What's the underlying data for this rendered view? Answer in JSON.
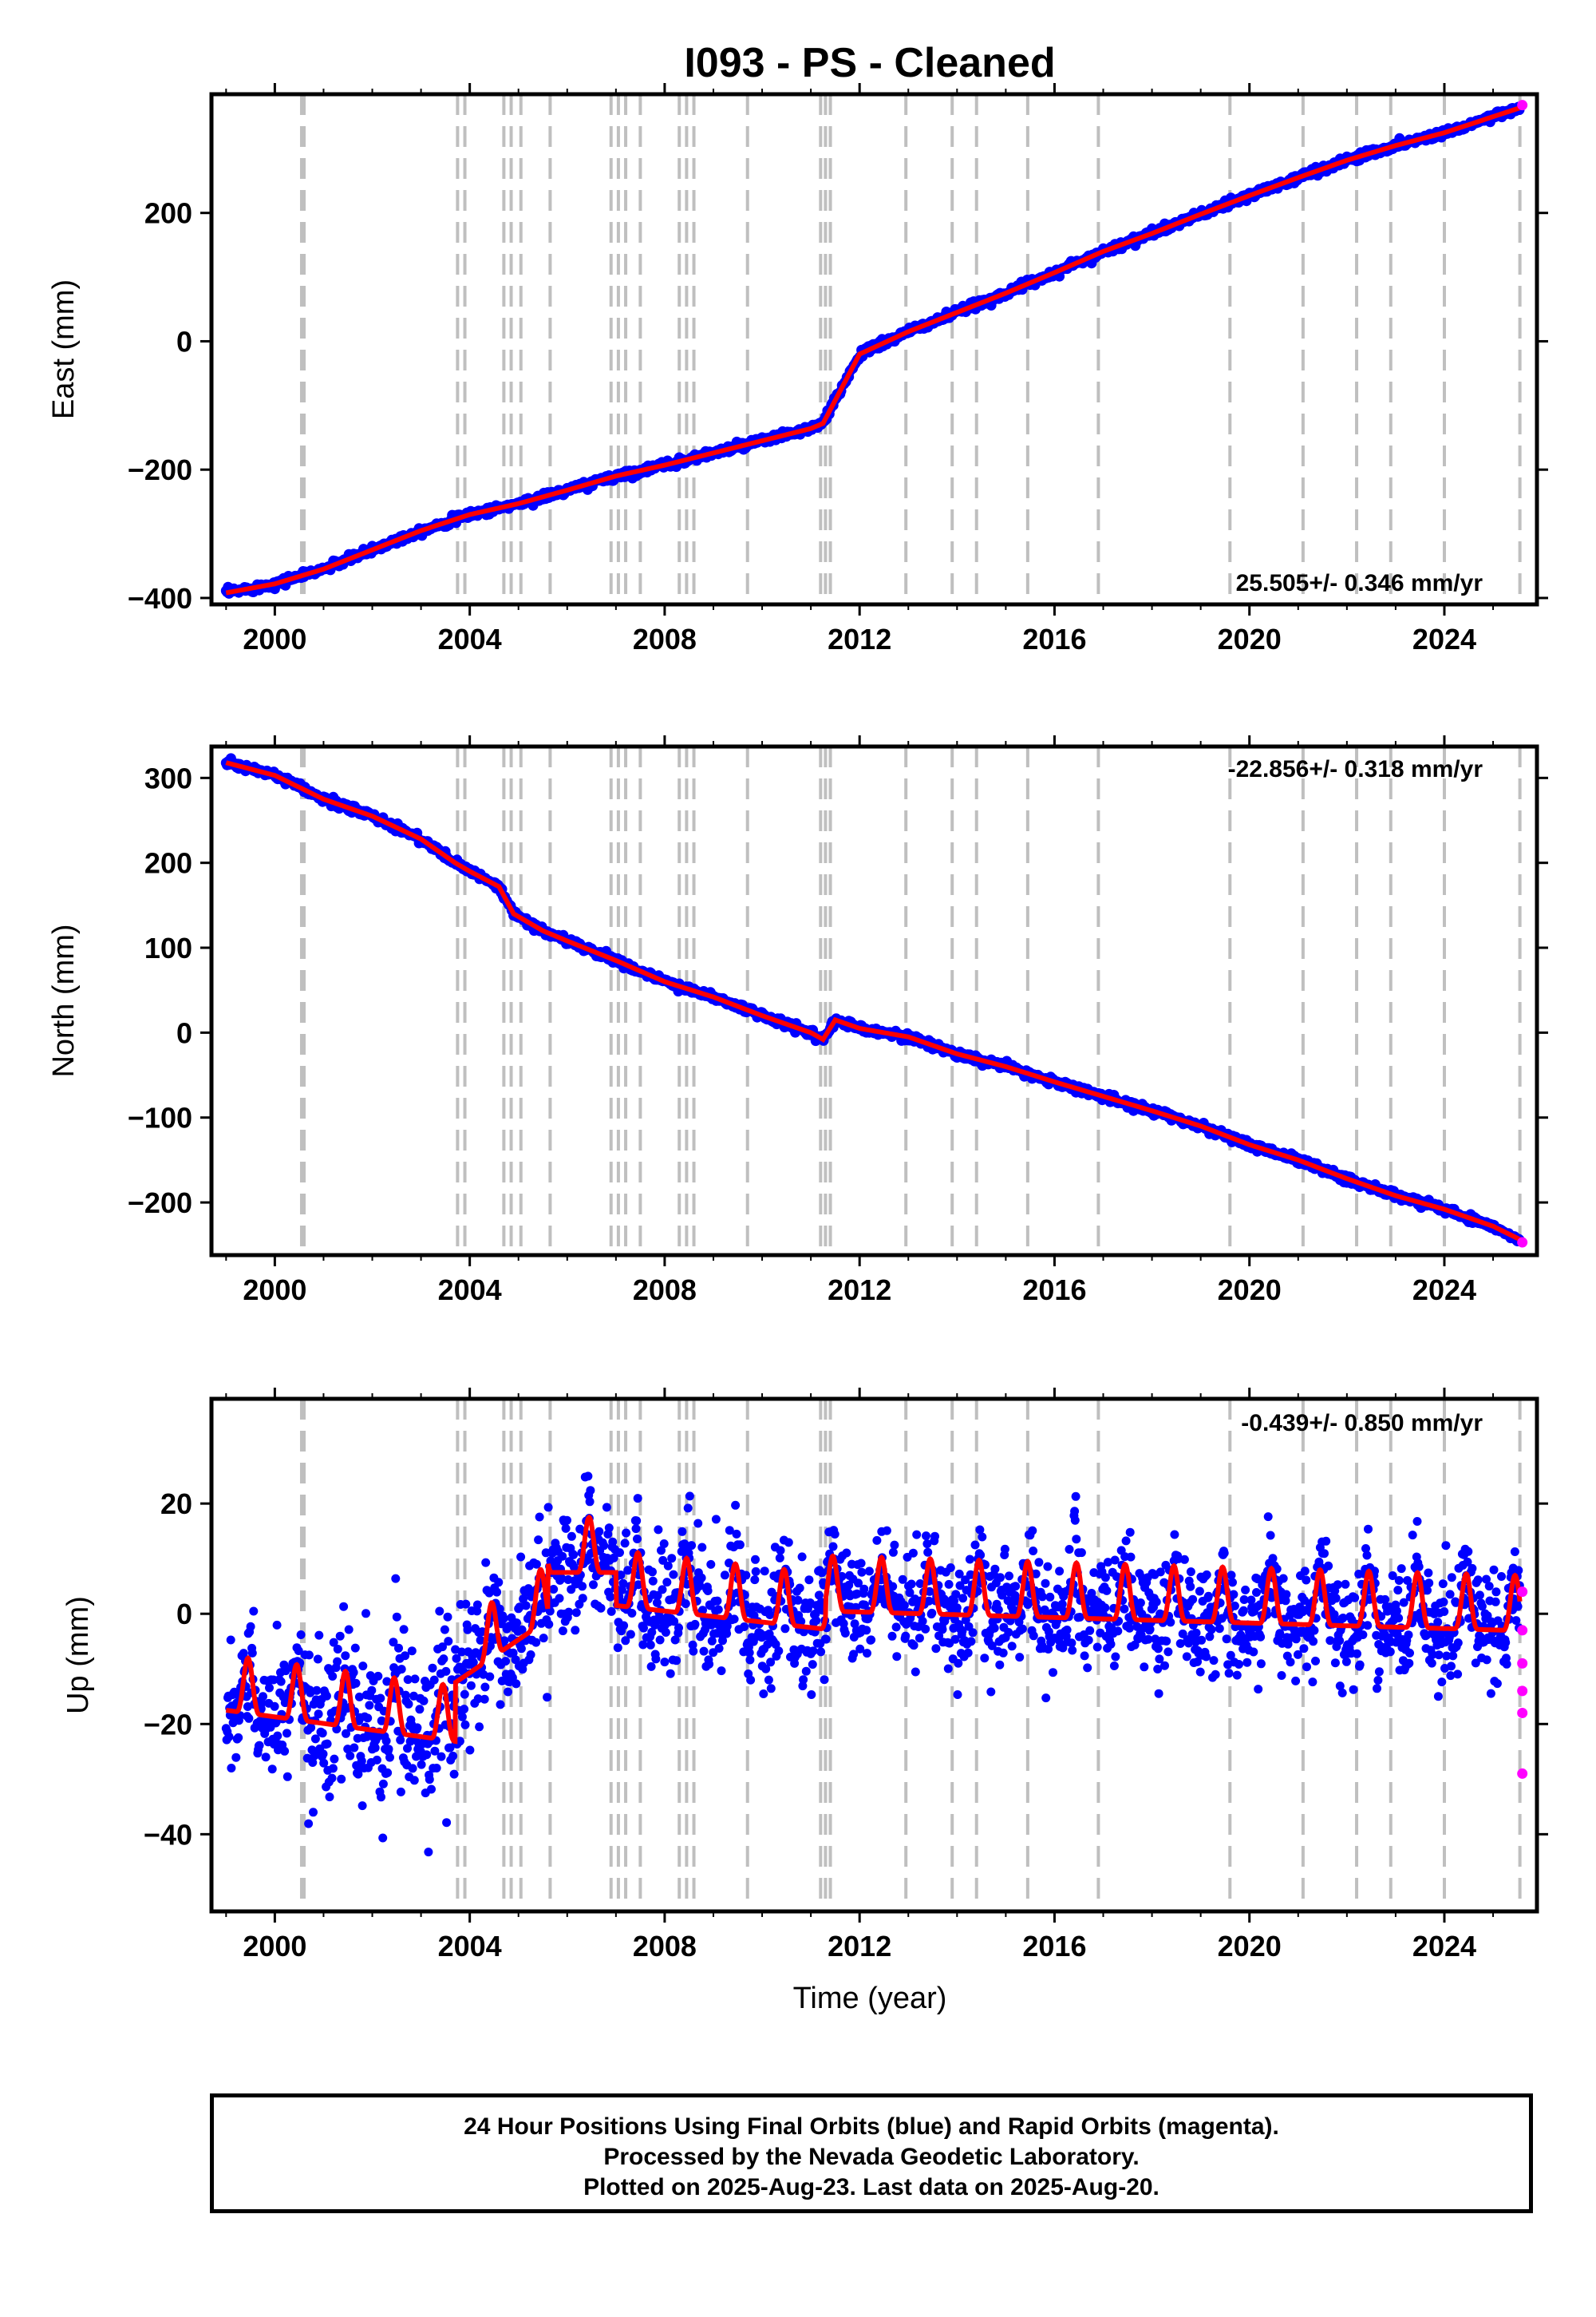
{
  "title": "I093  - PS - Cleaned",
  "xlabel": "Time (year)",
  "footer": {
    "line1": "24 Hour Positions Using Final Orbits (blue) and Rapid Orbits (magenta).",
    "line2": "Processed by the Nevada Geodetic Laboratory.",
    "line3": "Plotted on 2025-Aug-23. Last data on 2025-Aug-20."
  },
  "colors": {
    "final_orbits": "#0000ff",
    "rapid_orbits": "#ff00ff",
    "model_fit": "#ff0000",
    "event_lines": "#bfbfbf"
  },
  "chart_data": [
    {
      "type": "scatter",
      "component": "east",
      "ylabel": "East (mm)",
      "xlim": [
        1998.7,
        2025.9
      ],
      "ylim": [
        -410,
        385
      ],
      "xticks": [
        2000,
        2004,
        2008,
        2012,
        2016,
        2020,
        2024
      ],
      "xtick_labels": [
        "2000",
        "2004",
        "2008",
        "2012",
        "2016",
        "2020",
        "2024"
      ],
      "yticks": [
        -400,
        -200,
        0,
        200
      ],
      "ytick_labels": [
        "−400",
        "−200",
        "0",
        "200"
      ],
      "rate": "25.505+/- 0.346 mm/yr",
      "series": [
        {
          "name": "Final Orbits (blue)",
          "x": [
            1999.0,
            2000.0,
            2001.0,
            2002.0,
            2003.0,
            2004.0,
            2005.0,
            2006.0,
            2007.0,
            2008.0,
            2009.0,
            2010.0,
            2011.0,
            2011.25,
            2012.0,
            2013.0,
            2014.0,
            2015.0,
            2016.0,
            2017.0,
            2018.0,
            2019.0,
            2020.0,
            2021.0,
            2022.0,
            2023.0,
            2024.0,
            2025.0,
            2025.6
          ],
          "y": [
            -392,
            -378,
            -355,
            -325,
            -295,
            -270,
            -253,
            -232,
            -210,
            -193,
            -174,
            -155,
            -136,
            -128,
            -20,
            15,
            45,
            75,
            107,
            140,
            168,
            198,
            227,
            255,
            282,
            305,
            325,
            350,
            365
          ]
        },
        {
          "name": "Rapid Orbits (magenta)",
          "x": [
            2025.6
          ],
          "y": [
            368
          ]
        }
      ]
    },
    {
      "type": "scatter",
      "component": "north",
      "ylabel": "North (mm)",
      "xlim": [
        1998.7,
        2025.9
      ],
      "ylim": [
        -262,
        337
      ],
      "xticks": [
        2000,
        2004,
        2008,
        2012,
        2016,
        2020,
        2024
      ],
      "xtick_labels": [
        "2000",
        "2004",
        "2008",
        "2012",
        "2016",
        "2020",
        "2024"
      ],
      "yticks": [
        -200,
        -100,
        0,
        100,
        200,
        300
      ],
      "ytick_labels": [
        "−200",
        "−100",
        "0",
        "100",
        "200",
        "300"
      ],
      "rate": "-22.856+/- 0.318 mm/yr",
      "series": [
        {
          "name": "Final Orbits (blue)",
          "x": [
            1999.0,
            2000.0,
            2001.0,
            2002.0,
            2003.0,
            2003.7,
            2004.0,
            2004.6,
            2004.9,
            2005.5,
            2006.0,
            2007.0,
            2008.0,
            2009.0,
            2010.0,
            2011.0,
            2011.25,
            2011.5,
            2012.0,
            2013.0,
            2014.0,
            2015.0,
            2016.0,
            2017.0,
            2018.0,
            2019.0,
            2020.0,
            2021.0,
            2022.0,
            2023.0,
            2024.0,
            2025.0,
            2025.6
          ],
          "y": [
            318,
            303,
            275,
            255,
            228,
            200,
            190,
            172,
            140,
            120,
            108,
            85,
            60,
            42,
            20,
            0,
            -8,
            15,
            5,
            -5,
            -25,
            -40,
            -58,
            -75,
            -92,
            -110,
            -132,
            -150,
            -172,
            -192,
            -208,
            -228,
            -245
          ]
        },
        {
          "name": "Rapid Orbits (magenta)",
          "x": [
            2025.6
          ],
          "y": [
            -247
          ]
        }
      ]
    },
    {
      "type": "scatter",
      "component": "up",
      "ylabel": "Up (mm)",
      "xlim": [
        1998.7,
        2025.9
      ],
      "ylim": [
        -54,
        39
      ],
      "xticks": [
        2000,
        2004,
        2008,
        2012,
        2016,
        2020,
        2024
      ],
      "xtick_labels": [
        "2000",
        "2004",
        "2008",
        "2012",
        "2016",
        "2020",
        "2024"
      ],
      "yticks": [
        -40,
        -20,
        0,
        20
      ],
      "ytick_labels": [
        "−40",
        "−20",
        "0",
        "20"
      ],
      "rate": "-0.439+/- 0.850 mm/yr",
      "series": [
        {
          "name": "Rapid Orbits (magenta)",
          "x": [
            2025.6,
            2025.6,
            2025.6,
            2025.6,
            2025.6,
            2025.6
          ],
          "y": [
            4,
            -3,
            -9,
            -14,
            -18,
            -29
          ]
        }
      ]
    }
  ],
  "event_lines": [
    2000.55,
    2000.6,
    2003.75,
    2003.9,
    2004.7,
    2004.85,
    2005.05,
    2005.65,
    2006.9,
    2007.05,
    2007.2,
    2007.5,
    2008.3,
    2008.45,
    2008.6,
    2009.7,
    2011.2,
    2011.3,
    2011.4,
    2012.95,
    2013.9,
    2014.4,
    2015.45,
    2016.9,
    2019.6,
    2021.1,
    2022.2,
    2022.9,
    2024.0,
    2025.55
  ]
}
